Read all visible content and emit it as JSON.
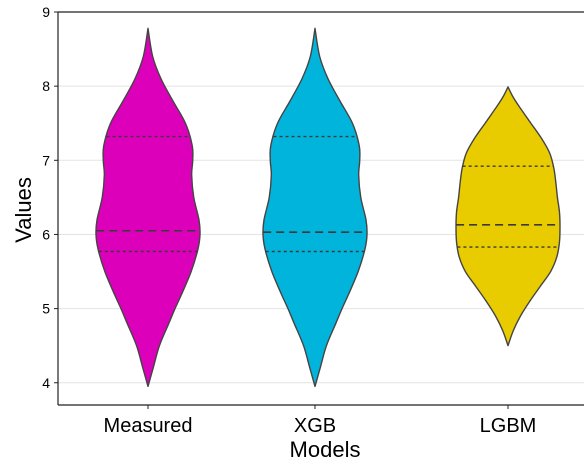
{
  "chart_data": {
    "type": "violin",
    "title": "",
    "xlabel": "Models",
    "ylabel": "Values",
    "ylim": [
      3.7,
      9
    ],
    "yticks": [
      4,
      5,
      6,
      7,
      8,
      9
    ],
    "grid": "horizontal",
    "categories": [
      "Measured",
      "XGB",
      "LGBM"
    ],
    "colors": [
      "#dd00bb",
      "#00b4dc",
      "#e8cc00"
    ],
    "series": [
      {
        "category": "Measured",
        "min": 3.95,
        "max": 8.78,
        "quartiles": [
          5.77,
          6.05,
          7.32
        ],
        "profile": [
          [
            3.95,
            0.0
          ],
          [
            4.2,
            0.1
          ],
          [
            4.5,
            0.22
          ],
          [
            4.8,
            0.4
          ],
          [
            5.0,
            0.52
          ],
          [
            5.2,
            0.65
          ],
          [
            5.5,
            0.83
          ],
          [
            5.8,
            0.96
          ],
          [
            6.0,
            1.0
          ],
          [
            6.2,
            0.98
          ],
          [
            6.5,
            0.88
          ],
          [
            6.8,
            0.84
          ],
          [
            7.0,
            0.86
          ],
          [
            7.2,
            0.85
          ],
          [
            7.5,
            0.72
          ],
          [
            7.8,
            0.48
          ],
          [
            8.1,
            0.25
          ],
          [
            8.4,
            0.09
          ],
          [
            8.78,
            0.0
          ]
        ]
      },
      {
        "category": "XGB",
        "min": 3.95,
        "max": 8.78,
        "quartiles": [
          5.77,
          6.03,
          7.32
        ],
        "profile": [
          [
            3.95,
            0.0
          ],
          [
            4.2,
            0.1
          ],
          [
            4.5,
            0.22
          ],
          [
            4.8,
            0.4
          ],
          [
            5.0,
            0.52
          ],
          [
            5.2,
            0.65
          ],
          [
            5.5,
            0.83
          ],
          [
            5.8,
            0.96
          ],
          [
            6.0,
            1.0
          ],
          [
            6.2,
            0.98
          ],
          [
            6.5,
            0.88
          ],
          [
            6.8,
            0.84
          ],
          [
            7.0,
            0.86
          ],
          [
            7.2,
            0.85
          ],
          [
            7.5,
            0.72
          ],
          [
            7.8,
            0.48
          ],
          [
            8.1,
            0.25
          ],
          [
            8.4,
            0.09
          ],
          [
            8.78,
            0.0
          ]
        ]
      },
      {
        "category": "LGBM",
        "min": 4.5,
        "max": 7.99,
        "quartiles": [
          5.83,
          6.13,
          6.92
        ],
        "profile": [
          [
            4.5,
            0.0
          ],
          [
            4.7,
            0.1
          ],
          [
            4.9,
            0.24
          ],
          [
            5.1,
            0.42
          ],
          [
            5.3,
            0.62
          ],
          [
            5.5,
            0.82
          ],
          [
            5.7,
            0.94
          ],
          [
            5.9,
            0.99
          ],
          [
            6.1,
            1.0
          ],
          [
            6.3,
            0.99
          ],
          [
            6.5,
            0.95
          ],
          [
            6.7,
            0.92
          ],
          [
            6.9,
            0.88
          ],
          [
            7.1,
            0.8
          ],
          [
            7.3,
            0.64
          ],
          [
            7.5,
            0.44
          ],
          [
            7.7,
            0.24
          ],
          [
            7.85,
            0.1
          ],
          [
            7.99,
            0.0
          ]
        ]
      }
    ]
  }
}
